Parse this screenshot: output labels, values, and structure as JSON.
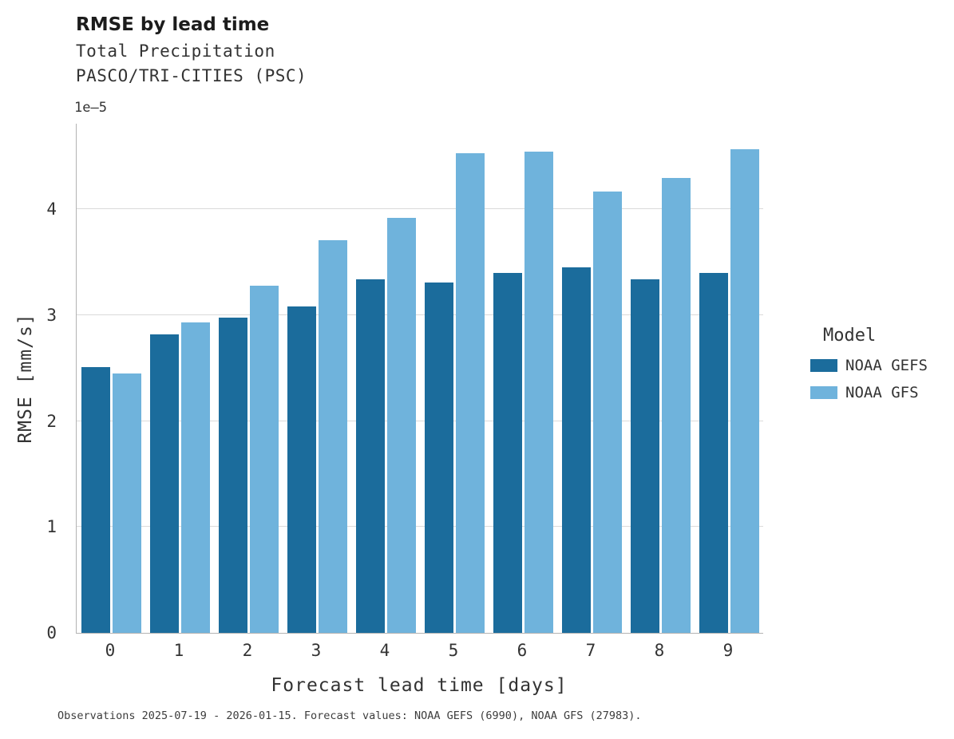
{
  "chart_data": {
    "type": "bar",
    "title": "RMSE by lead time",
    "subtitle_line1": "Total Precipitation",
    "subtitle_line2": "PASCO/TRI-CITIES (PSC)",
    "offset_text": "1e–5",
    "xlabel": "Forecast lead time [days]",
    "ylabel": "RMSE [mm/s]",
    "categories": [
      "0",
      "1",
      "2",
      "3",
      "4",
      "5",
      "6",
      "7",
      "8",
      "9"
    ],
    "series": [
      {
        "name": "NOAA GEFS",
        "color": "#1b6c9c",
        "values": [
          2.51,
          2.82,
          2.98,
          3.08,
          3.34,
          3.31,
          3.4,
          3.45,
          3.34,
          3.4
        ]
      },
      {
        "name": "NOAA GFS",
        "color": "#6fb3dc",
        "values": [
          2.45,
          2.93,
          3.28,
          3.71,
          3.92,
          4.53,
          4.55,
          4.17,
          4.3,
          4.57
        ]
      }
    ],
    "ylim": [
      0,
      4.81
    ],
    "yticks": [
      0,
      1,
      2,
      3,
      4
    ],
    "grid": "horizontal",
    "legend_title": "Model",
    "legend_position": "right",
    "units_scale": "1e-5 mm/s",
    "caption": "Observations 2025-07-19 - 2026-01-15. Forecast values: NOAA GEFS (6990), NOAA GFS (27983)."
  }
}
